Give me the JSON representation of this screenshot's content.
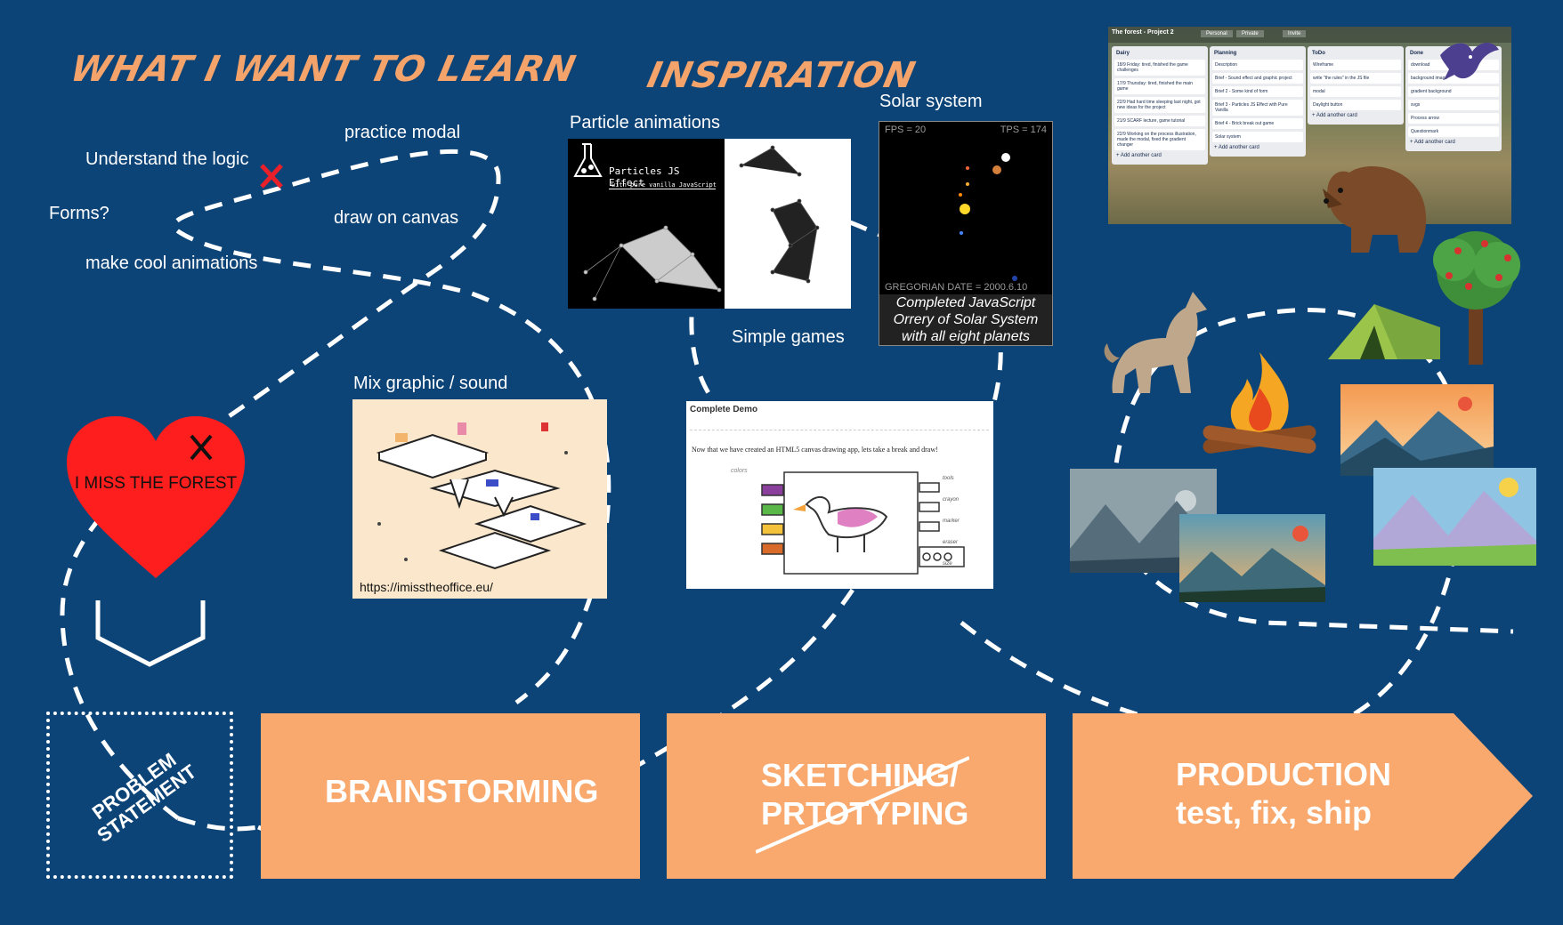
{
  "titles": {
    "learn": "WHAT I WANT TO LEARN",
    "inspiration": "INSPIRATION"
  },
  "learn_items": {
    "understand": "Understand the logic",
    "practice": "practice modal",
    "forms": "Forms?",
    "canvas": "draw on canvas",
    "animations": "make cool animations"
  },
  "heart": {
    "text": "I MISS THE FOREST",
    "color": "#ff1e1e"
  },
  "inspiration_items": {
    "particles": "Particle animations",
    "solar": "Solar system",
    "simple_games": "Simple games",
    "mix": "Mix graphic / sound",
    "office_url": "https://imisstheoffice.eu/"
  },
  "particles_card": {
    "title": "Particles JS Effect",
    "subtitle": "with pure vanilla JavaScript"
  },
  "solar_card": {
    "fps": "FPS = 20",
    "tps": "TPS = 174",
    "date": "GREGORIAN DATE = 2000.6.10",
    "caption": "Completed JavaScript Orrery of Solar System with all eight planets"
  },
  "demo_card": {
    "title": "Complete Demo",
    "text": "Now that we have created an HTML5 canvas drawing app, lets take a break and draw!",
    "left_labels": [
      "colors"
    ],
    "right_labels": [
      "tools",
      "crayon",
      "marker",
      "eraser",
      "size"
    ]
  },
  "trello": {
    "board": "The forest - Project 2",
    "buttons": [
      "Personal",
      "Private",
      "Invite"
    ],
    "lists": [
      {
        "name": "Dairy",
        "cards": [
          "18/9 Friday: tired, finished the game challenges",
          "17/9 Thursday: tired, finished the main game",
          "22/9 Had hard time sleeping last night, got new ideas for the project",
          "21/9 SCARF lecture, game tutorial",
          "22/9 Working on the process illustration, made the modal, fixed the gradient changer"
        ],
        "add": "+ Add another card"
      },
      {
        "name": "Planning",
        "cards": [
          "Description",
          "Brief - Sound effect and graphic project",
          "Brief 2 - Some kind of form",
          "Brief 3 - Particles JS Effect with Pure Vanilla",
          "Brief 4 - Brick break out game",
          "Solar system"
        ],
        "add": "+ Add another card"
      },
      {
        "name": "ToDo",
        "cards": [
          "Wireframe",
          "write \"the rules\" in the JS file",
          "modal",
          "Daylight button"
        ],
        "add": "+ Add another card"
      },
      {
        "name": "Done",
        "cards": [
          "download",
          "background image",
          "gradient background",
          "svgs",
          "Process arrow",
          "Questionmark"
        ],
        "add": "+ Add another card"
      }
    ]
  },
  "stages": {
    "problem": "PROBLEM STATEMENT",
    "brainstorming": "BRAINSTORMING",
    "sketching_1": "SKETCHING/",
    "sketching_2": "PRTOTYPING",
    "production_1": "PRODUCTION",
    "production_2": "test, fix, ship"
  },
  "colors": {
    "background": "#0d4477",
    "accent": "#f9a96e",
    "title": "#f4a36b",
    "cross": "#e8202a"
  }
}
